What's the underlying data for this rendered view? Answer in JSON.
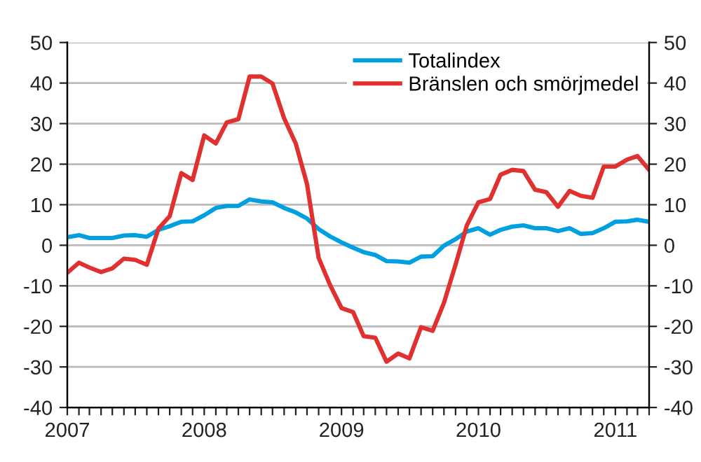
{
  "chart_data": {
    "type": "line",
    "x": [
      "2007-01",
      "2007-02",
      "2007-03",
      "2007-04",
      "2007-05",
      "2007-06",
      "2007-07",
      "2007-08",
      "2007-09",
      "2007-10",
      "2007-11",
      "2007-12",
      "2008-01",
      "2008-02",
      "2008-03",
      "2008-04",
      "2008-05",
      "2008-06",
      "2008-07",
      "2008-08",
      "2008-09",
      "2008-10",
      "2008-11",
      "2008-12",
      "2009-01",
      "2009-02",
      "2009-03",
      "2009-04",
      "2009-05",
      "2009-06",
      "2009-07",
      "2009-08",
      "2009-09",
      "2009-10",
      "2009-11",
      "2009-12",
      "2010-01",
      "2010-02",
      "2010-03",
      "2010-04",
      "2010-05",
      "2010-06",
      "2010-07",
      "2010-08",
      "2010-09",
      "2010-10",
      "2010-11",
      "2010-12",
      "2011-01",
      "2011-02",
      "2011-03",
      "2011-04"
    ],
    "series": [
      {
        "name": "Totalindex",
        "color": "#00a0e0",
        "values": [
          2.0,
          2.5,
          1.8,
          1.8,
          1.8,
          2.4,
          2.5,
          2.1,
          3.8,
          4.7,
          5.8,
          5.9,
          7.4,
          9.2,
          9.7,
          9.7,
          11.3,
          10.8,
          10.6,
          9.2,
          8.1,
          6.6,
          4.0,
          2.2,
          0.7,
          -0.6,
          -1.7,
          -2.4,
          -3.9,
          -4.0,
          -4.3,
          -2.8,
          -2.7,
          -0.1,
          1.5,
          3.4,
          4.2,
          2.6,
          3.8,
          4.6,
          4.9,
          4.2,
          4.2,
          3.5,
          4.2,
          2.8,
          3.0,
          4.2,
          5.8,
          5.9,
          6.3,
          5.8
        ]
      },
      {
        "name": "Bränslen och smörjmedel",
        "color": "#e03030",
        "values": [
          -6.8,
          -4.3,
          -5.5,
          -6.6,
          -5.7,
          -3.3,
          -3.6,
          -4.8,
          4.1,
          7.2,
          17.8,
          16.1,
          27.1,
          25.1,
          30.3,
          31.1,
          41.6,
          41.6,
          39.9,
          31.3,
          25.1,
          15.1,
          -3.1,
          -9.7,
          -15.5,
          -16.5,
          -22.4,
          -22.8,
          -28.7,
          -26.7,
          -27.9,
          -20.2,
          -21.1,
          -14.2,
          -4.8,
          4.9,
          10.6,
          11.4,
          17.4,
          18.6,
          18.3,
          13.7,
          13.1,
          9.5,
          13.4,
          12.2,
          11.7,
          19.4,
          19.4,
          21.1,
          22.0,
          18.6
        ]
      }
    ],
    "xlim": [
      "2007-01",
      "2011-04"
    ],
    "xticks": [
      {
        "value": "2007-01",
        "label": "2007"
      },
      {
        "value": "2007-02",
        "label": null
      },
      {
        "value": "2007-03",
        "label": null
      },
      {
        "value": "2007-04",
        "label": null
      },
      {
        "value": "2007-05",
        "label": null
      },
      {
        "value": "2007-06",
        "label": null
      },
      {
        "value": "2007-07",
        "label": null
      },
      {
        "value": "2007-08",
        "label": null
      },
      {
        "value": "2007-09",
        "label": null
      },
      {
        "value": "2007-10",
        "label": null
      },
      {
        "value": "2007-11",
        "label": null
      },
      {
        "value": "2007-12",
        "label": null
      },
      {
        "value": "2008-01",
        "label": "2008"
      },
      {
        "value": "2008-02",
        "label": null
      },
      {
        "value": "2008-03",
        "label": null
      },
      {
        "value": "2008-04",
        "label": null
      },
      {
        "value": "2008-05",
        "label": null
      },
      {
        "value": "2008-06",
        "label": null
      },
      {
        "value": "2008-07",
        "label": null
      },
      {
        "value": "2008-08",
        "label": null
      },
      {
        "value": "2008-09",
        "label": null
      },
      {
        "value": "2008-10",
        "label": null
      },
      {
        "value": "2008-11",
        "label": null
      },
      {
        "value": "2008-12",
        "label": null
      },
      {
        "value": "2009-01",
        "label": "2009"
      },
      {
        "value": "2009-02",
        "label": null
      },
      {
        "value": "2009-03",
        "label": null
      },
      {
        "value": "2009-04",
        "label": null
      },
      {
        "value": "2009-05",
        "label": null
      },
      {
        "value": "2009-06",
        "label": null
      },
      {
        "value": "2009-07",
        "label": null
      },
      {
        "value": "2009-08",
        "label": null
      },
      {
        "value": "2009-09",
        "label": null
      },
      {
        "value": "2009-10",
        "label": null
      },
      {
        "value": "2009-11",
        "label": null
      },
      {
        "value": "2009-12",
        "label": null
      },
      {
        "value": "2010-01",
        "label": "2010"
      },
      {
        "value": "2010-02",
        "label": null
      },
      {
        "value": "2010-03",
        "label": null
      },
      {
        "value": "2010-04",
        "label": null
      },
      {
        "value": "2010-05",
        "label": null
      },
      {
        "value": "2010-06",
        "label": null
      },
      {
        "value": "2010-07",
        "label": null
      },
      {
        "value": "2010-08",
        "label": null
      },
      {
        "value": "2010-09",
        "label": null
      },
      {
        "value": "2010-10",
        "label": null
      },
      {
        "value": "2010-11",
        "label": null
      },
      {
        "value": "2010-12",
        "label": null
      },
      {
        "value": "2011-01",
        "label": "2011"
      },
      {
        "value": "2011-02",
        "label": null
      },
      {
        "value": "2011-03",
        "label": null
      },
      {
        "value": "2011-04",
        "label": null
      }
    ],
    "ylim": [
      -40,
      50
    ],
    "yticks": [
      -40,
      -30,
      -20,
      -10,
      0,
      10,
      20,
      30,
      40,
      50
    ],
    "y2lim": [
      -40,
      50
    ],
    "y2ticks": [
      -40,
      -30,
      -20,
      -10,
      0,
      10,
      20,
      30,
      40,
      50
    ],
    "grid": "y",
    "legend": "top right",
    "marker": "none",
    "line_style": "solid"
  }
}
